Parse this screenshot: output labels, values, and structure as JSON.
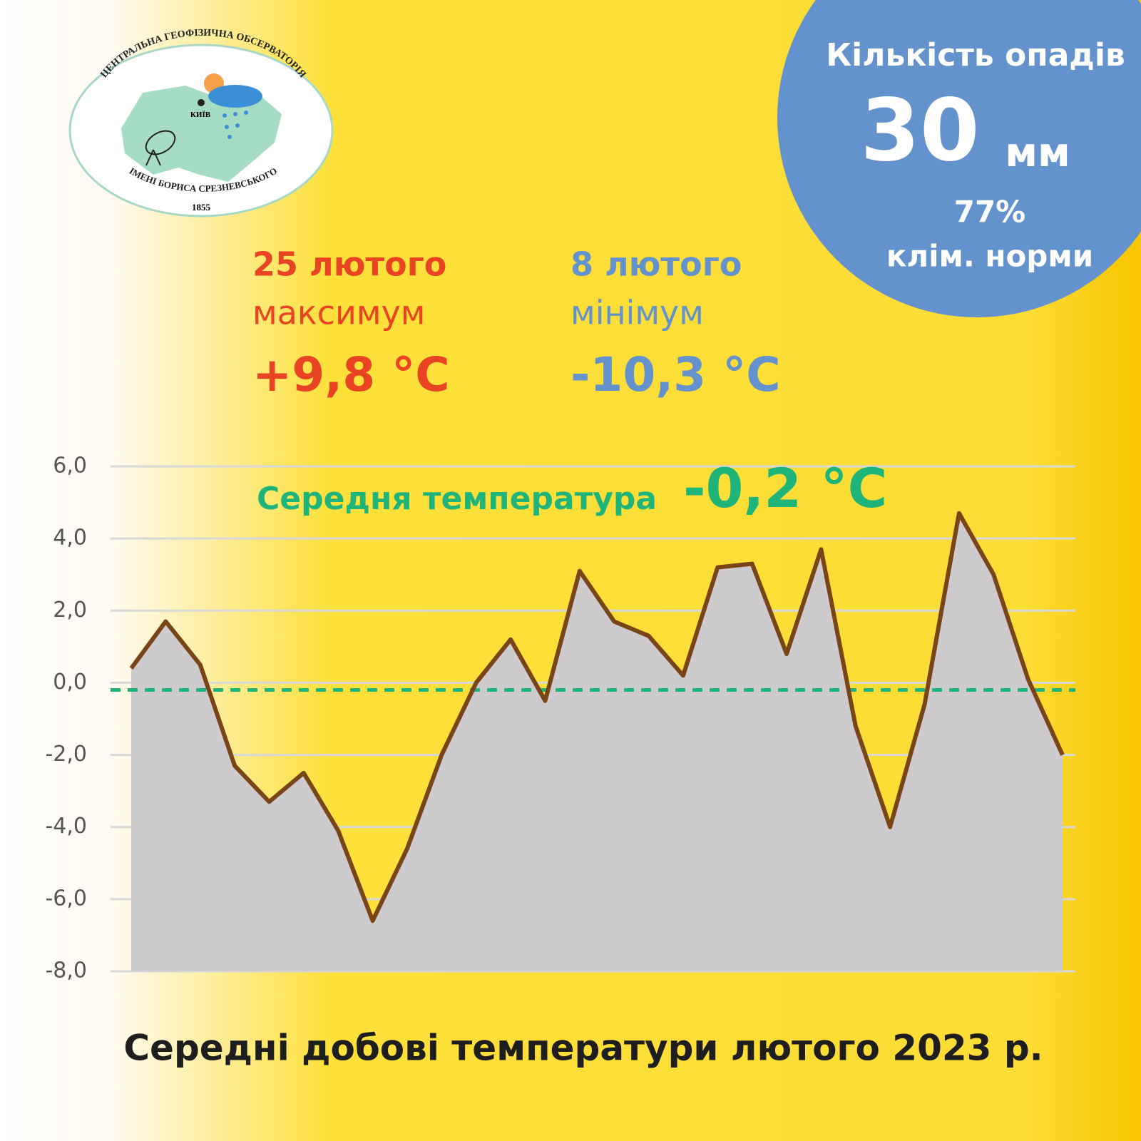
{
  "logo": {
    "top_text": "ЦЕНТРАЛЬНА ГЕОФІЗИЧНА ОБСЕРВАТОРІЯ",
    "bottom_text": "ІМЕНІ БОРИСА СРЕЗНЕВСЬКОГО",
    "year": "1855",
    "city": "КИЇВ"
  },
  "precipitation": {
    "title": "Кількість опадів",
    "amount": "30",
    "unit": "мм",
    "percent": "77%",
    "note": "клім. норми"
  },
  "max": {
    "date": "25 лютого",
    "label": "максимум",
    "value": "+9,8 °C"
  },
  "min": {
    "date": "8 лютого",
    "label": "мінімум",
    "value": "-10,3 °C"
  },
  "chart_data": {
    "type": "area",
    "title": "Середні добові температури лютого 2023 р.",
    "categories": [
      null,
      null,
      null,
      null,
      null,
      null,
      null,
      null,
      null,
      null,
      null,
      null,
      null,
      null,
      null,
      null,
      null,
      null,
      null,
      null,
      null,
      null,
      null,
      null,
      null,
      null,
      null,
      null
    ],
    "values": [
      0.4,
      1.7,
      0.5,
      -2.3,
      -3.3,
      -2.5,
      -4.1,
      -6.6,
      -4.6,
      -2.0,
      0.0,
      1.2,
      -0.5,
      3.1,
      1.7,
      1.3,
      0.2,
      3.2,
      3.3,
      0.8,
      3.7,
      -1.2,
      -4.0,
      -0.6,
      4.7,
      3.0,
      0.1,
      -2.0
    ],
    "color": "#7a4516",
    "fill_color": "#cdcbcd",
    "ylim": [
      -8,
      6
    ],
    "yticks": [
      {
        "value": -8,
        "label": "-8,0"
      },
      {
        "value": -6,
        "label": "-6,0"
      },
      {
        "value": -4,
        "label": "-4,0"
      },
      {
        "value": -2,
        "label": "-2,0"
      },
      {
        "value": 0,
        "label": "0,0"
      },
      {
        "value": 2,
        "label": "2,0"
      },
      {
        "value": 4,
        "label": "4,0"
      },
      {
        "value": 6,
        "label": "6,0"
      }
    ],
    "grid": true,
    "mean": {
      "label": "Середня температура",
      "value": -0.2,
      "value_label": "-0,2 °C",
      "color": "#1fb57a"
    }
  }
}
